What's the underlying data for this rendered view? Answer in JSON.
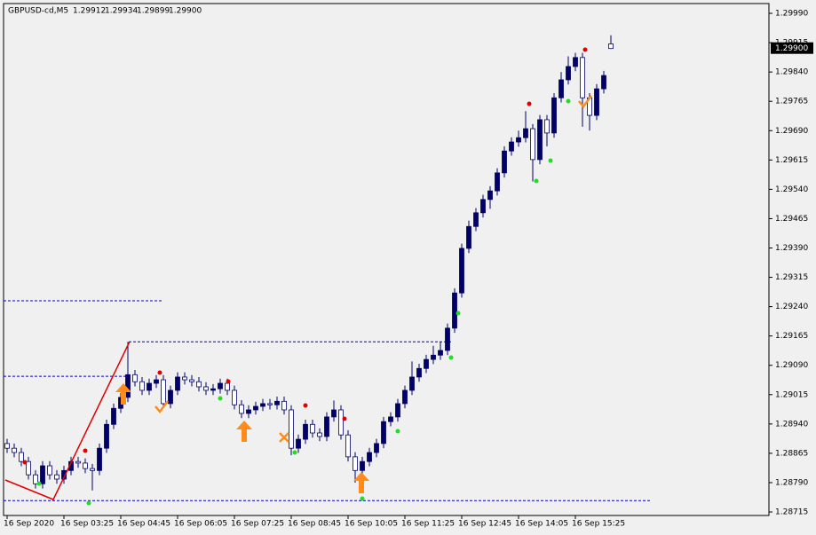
{
  "chart_data": {
    "type": "candlestick",
    "title": "GBPUSD-cd,M5",
    "categories": [
      "16 Sep 2020",
      null,
      null,
      null,
      null,
      null,
      null,
      null,
      "16 Sep 03:25",
      null,
      null,
      null,
      null,
      null,
      null,
      null,
      "16 Sep 04:45",
      null,
      null,
      null,
      null,
      null,
      null,
      null,
      "16 Sep 06:05",
      null,
      null,
      null,
      null,
      null,
      null,
      null,
      "16 Sep 07:25",
      null,
      null,
      null,
      null,
      null,
      null,
      null,
      "16 Sep 08:45",
      null,
      null,
      null,
      null,
      null,
      null,
      null,
      "16 Sep 10:05",
      null,
      null,
      null,
      null,
      null,
      null,
      null,
      "16 Sep 11:25",
      null,
      null,
      null,
      null,
      null,
      null,
      null,
      "16 Sep 12:45",
      null,
      null,
      null,
      null,
      null,
      null,
      null,
      "16 Sep 14:05",
      null,
      null,
      null,
      null,
      null,
      null,
      null,
      "16 Sep 15:25",
      null,
      null,
      null,
      null,
      null
    ],
    "open": [
      1.2889,
      1.28878,
      1.28867,
      1.28844,
      1.2881,
      1.28787,
      1.28833,
      1.2881,
      1.28799,
      1.28821,
      1.28844,
      1.2884,
      1.28826,
      1.28821,
      1.28878,
      1.28939,
      1.2898,
      1.29008,
      1.29066,
      1.29048,
      1.29026,
      1.29044,
      1.29053,
      1.28992,
      1.29026,
      1.2906,
      1.29053,
      1.29048,
      1.29035,
      1.29026,
      1.2903,
      1.29044,
      1.29026,
      1.28989,
      1.28967,
      1.28976,
      1.28985,
      1.28992,
      1.28989,
      1.28998,
      1.28976,
      1.28878,
      1.28901,
      1.28939,
      1.28917,
      1.28908,
      1.28958,
      1.28976,
      1.28912,
      1.28856,
      1.28821,
      1.28844,
      1.28867,
      1.2889,
      1.28946,
      1.28958,
      1.28992,
      1.29026,
      1.2906,
      1.29082,
      1.29105,
      1.29116,
      1.29128,
      1.29185,
      1.29275,
      1.29389,
      1.29445,
      1.2948,
      1.29514,
      1.29536,
      1.29582,
      1.29638,
      1.29661,
      1.29672,
      1.29695,
      1.29616,
      1.29718,
      1.29684,
      1.29774,
      1.2982,
      1.29854,
      1.29877,
      1.29774,
      1.29729,
      1.29797,
      1.29912
    ],
    "high": [
      1.28902,
      1.2889,
      1.28879,
      1.28856,
      1.28822,
      1.28845,
      1.28845,
      1.28822,
      1.28833,
      1.28856,
      1.28856,
      1.28852,
      1.28838,
      1.2889,
      1.28951,
      1.28992,
      1.2902,
      1.2915,
      1.29078,
      1.2906,
      1.29056,
      1.29065,
      1.29065,
      1.29038,
      1.29072,
      1.29072,
      1.29065,
      1.2906,
      1.29047,
      1.29042,
      1.29056,
      1.29056,
      1.29038,
      1.29001,
      1.28988,
      1.28997,
      1.29004,
      1.29004,
      1.2901,
      1.2901,
      1.28988,
      1.28913,
      1.28951,
      1.28951,
      1.28929,
      1.2897,
      1.29,
      1.28988,
      1.28924,
      1.28868,
      1.28856,
      1.28879,
      1.28902,
      1.28958,
      1.2897,
      1.29004,
      1.29038,
      1.291,
      1.29094,
      1.29117,
      1.2914,
      1.2915,
      1.29197,
      1.29287,
      1.29401,
      1.2946,
      1.29492,
      1.29526,
      1.29548,
      1.29594,
      1.2965,
      1.29673,
      1.2969,
      1.2974,
      1.29707,
      1.2973,
      1.2973,
      1.29786,
      1.2984,
      1.2988,
      1.29889,
      1.29889,
      1.29786,
      1.29809,
      1.29843,
      1.29934
    ],
    "low": [
      1.28866,
      1.28855,
      1.28832,
      1.28798,
      1.28775,
      1.28775,
      1.28798,
      1.28787,
      1.28787,
      1.28809,
      1.28828,
      1.28814,
      1.2877,
      1.28809,
      1.28866,
      1.28927,
      1.28968,
      1.28996,
      1.29036,
      1.29014,
      1.29014,
      1.29032,
      1.2898,
      1.2898,
      1.29014,
      1.29041,
      1.29036,
      1.29023,
      1.29014,
      1.29014,
      1.29018,
      1.29014,
      1.28977,
      1.28955,
      1.28955,
      1.28964,
      1.28973,
      1.28977,
      1.28977,
      1.28964,
      1.2886,
      1.28866,
      1.28889,
      1.28905,
      1.28896,
      1.28896,
      1.28946,
      1.289,
      1.28844,
      1.2879,
      1.28809,
      1.28832,
      1.28855,
      1.28878,
      1.28934,
      1.28946,
      1.2898,
      1.29014,
      1.29048,
      1.2907,
      1.29093,
      1.29104,
      1.29116,
      1.29173,
      1.29263,
      1.29377,
      1.29433,
      1.29468,
      1.2949,
      1.29524,
      1.2957,
      1.29626,
      1.29649,
      1.2966,
      1.2956,
      1.29604,
      1.2965,
      1.29672,
      1.29762,
      1.29808,
      1.29842,
      1.297,
      1.2969,
      1.29717,
      1.29785,
      1.29899
    ],
    "close": [
      1.28878,
      1.28867,
      1.28844,
      1.2881,
      1.28787,
      1.28833,
      1.2881,
      1.28799,
      1.28821,
      1.28844,
      1.2884,
      1.28826,
      1.28821,
      1.28878,
      1.28939,
      1.2898,
      1.29008,
      1.29066,
      1.29048,
      1.29026,
      1.29044,
      1.29053,
      1.28992,
      1.29026,
      1.2906,
      1.29053,
      1.29048,
      1.29035,
      1.29026,
      1.2903,
      1.29044,
      1.29026,
      1.28989,
      1.28967,
      1.28976,
      1.28985,
      1.28992,
      1.28989,
      1.28998,
      1.28976,
      1.28878,
      1.28901,
      1.28939,
      1.28917,
      1.28908,
      1.28958,
      1.28976,
      1.28912,
      1.28856,
      1.28821,
      1.28844,
      1.28867,
      1.2889,
      1.28946,
      1.28958,
      1.28992,
      1.29026,
      1.2906,
      1.29082,
      1.29105,
      1.29116,
      1.29128,
      1.29185,
      1.29275,
      1.29389,
      1.29445,
      1.2948,
      1.29514,
      1.29536,
      1.29582,
      1.29638,
      1.29661,
      1.29672,
      1.29695,
      1.29616,
      1.29718,
      1.29684,
      1.29774,
      1.2982,
      1.29854,
      1.29877,
      1.29774,
      1.29729,
      1.29797,
      1.29831,
      1.299
    ],
    "last_price": {
      "value": 1.299,
      "label": "1.29900"
    },
    "levels": [
      1.29255,
      1.29062,
      1.2915,
      1.28744
    ],
    "ylim": [
      1.28706,
      1.30015
    ],
    "yticks": [
      {
        "value": 1.2999,
        "label": "1.29990"
      },
      1.29915,
      {
        "value": 1.2984,
        "label": "1.29840"
      },
      1.29765,
      {
        "value": 1.2969,
        "label": "1.29690"
      },
      1.29615,
      {
        "value": 1.2954,
        "label": "1.29540"
      },
      1.29465,
      {
        "value": 1.2939,
        "label": "1.29390"
      },
      1.29315,
      {
        "value": 1.2924,
        "label": "1.29240"
      },
      1.29165,
      {
        "value": 1.2909,
        "label": "1.29090"
      },
      1.29015,
      {
        "value": 1.2894,
        "label": "1.28940"
      },
      1.28865,
      {
        "value": 1.2879,
        "label": "1.28790"
      },
      1.28715
    ],
    "color": "#000066",
    "level_color": "#0000cc"
  }
}
